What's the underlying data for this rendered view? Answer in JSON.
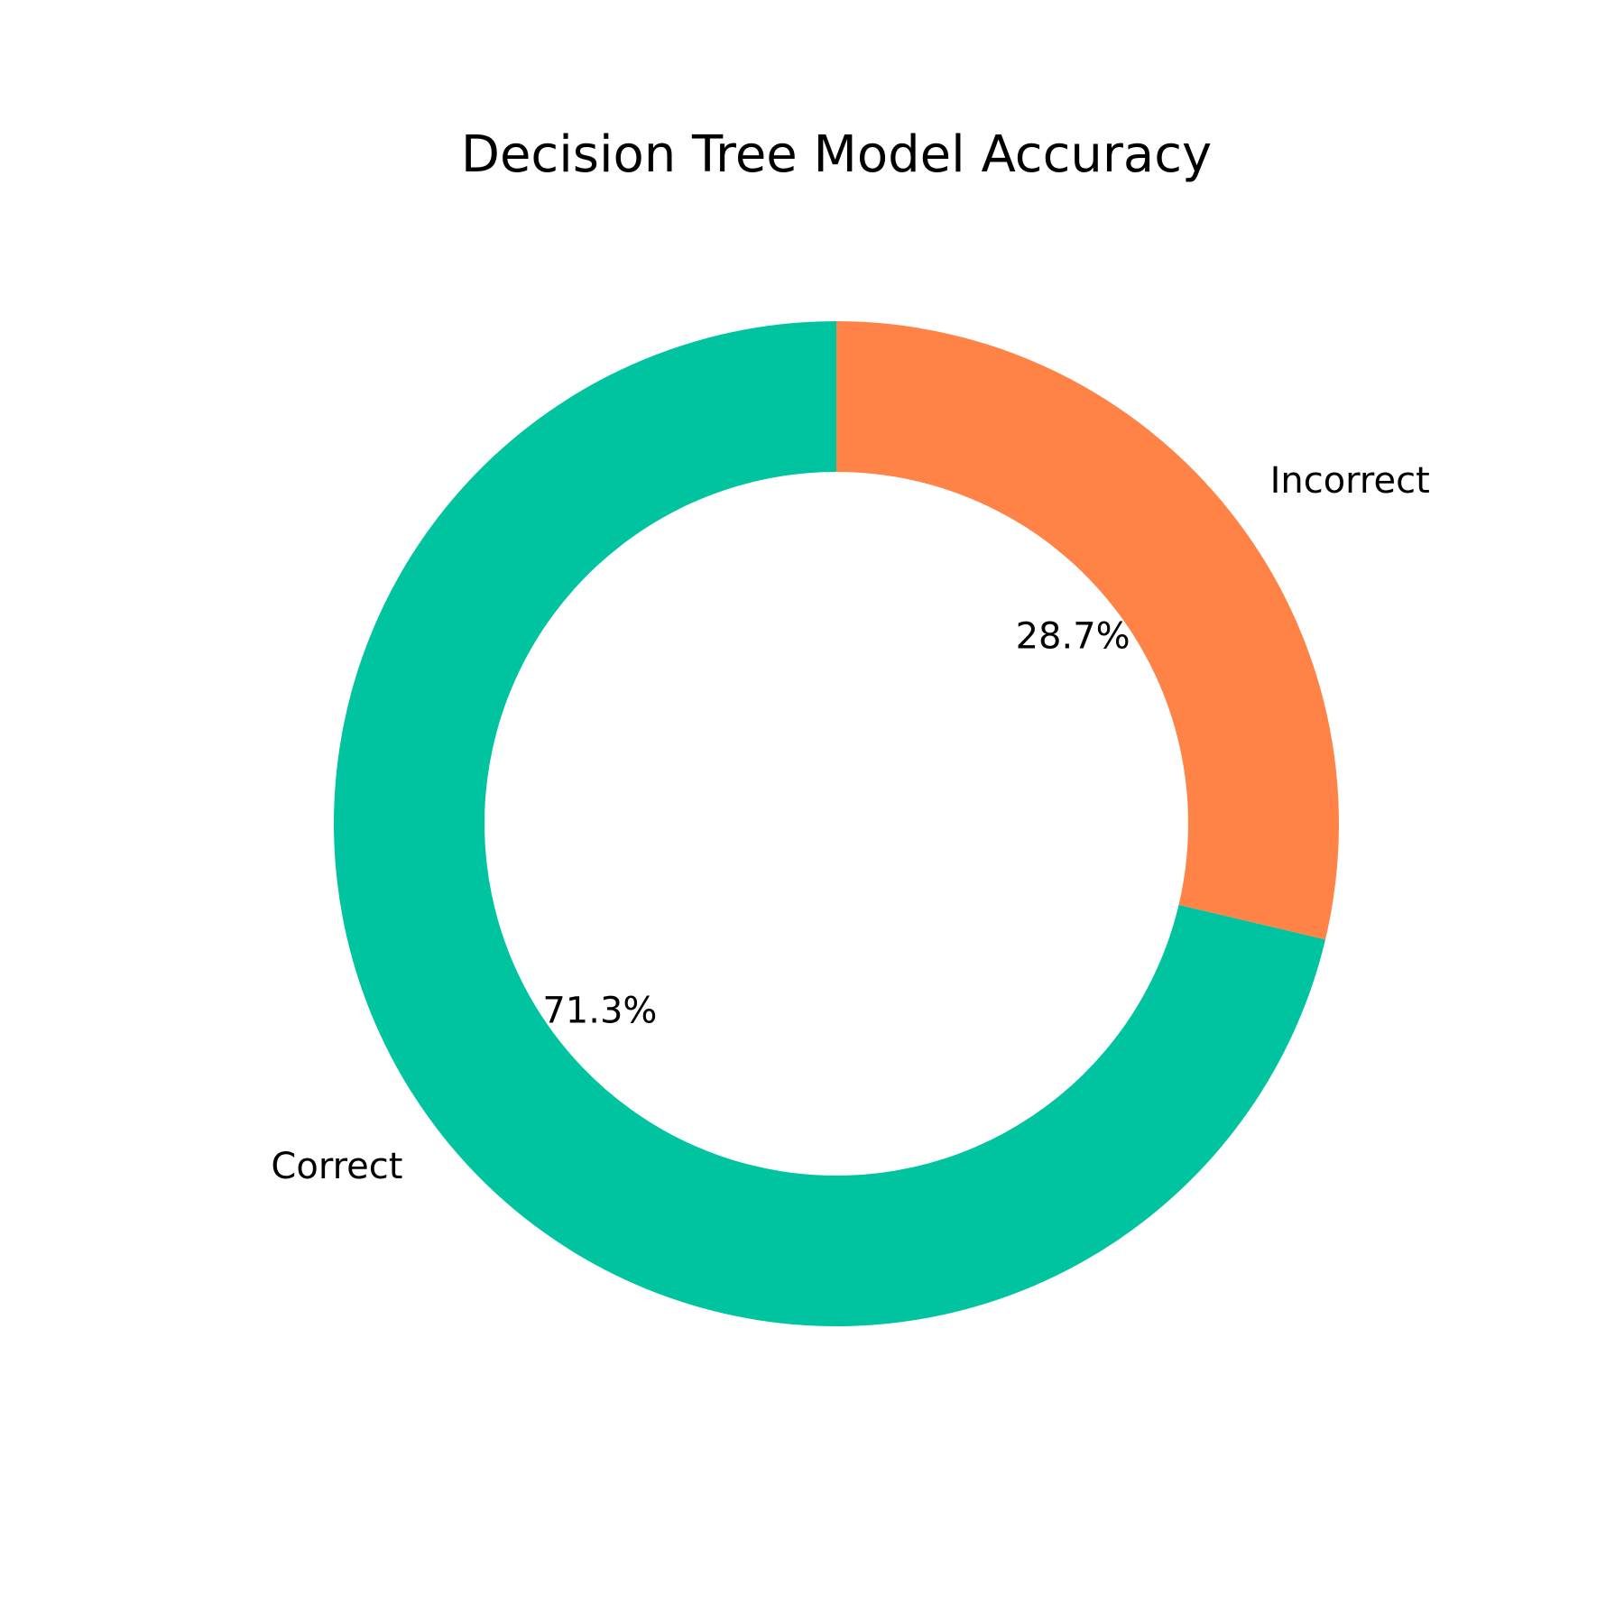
{
  "chart_data": {
    "type": "pie",
    "variant": "donut",
    "title": "Decision Tree Model Accuracy",
    "legend": "none",
    "start_angle_deg": 90,
    "direction": "counterclockwise",
    "slices": [
      {
        "label": "Correct",
        "value": 71.3,
        "pct_label": "71.3%",
        "color": "#00c4a0"
      },
      {
        "label": "Incorrect",
        "value": 28.7,
        "pct_label": "28.7%",
        "color": "#ff8246"
      }
    ]
  }
}
